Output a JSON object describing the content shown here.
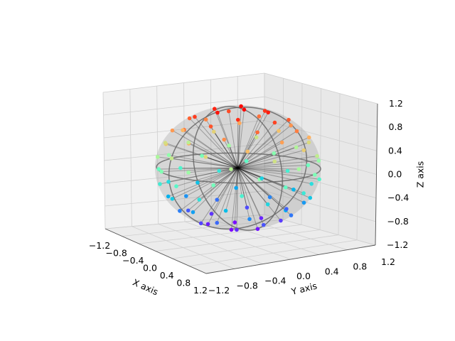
{
  "chart_data": {
    "type": "scatter",
    "subtype": "3d-scatter-unit-sphere",
    "title": "",
    "xlabel": "X axis",
    "ylabel": "Y axis",
    "zlabel": "Z axis",
    "xlim": [
      -1.2,
      1.2
    ],
    "ylim": [
      -1.2,
      1.2
    ],
    "zlim": [
      -1.2,
      1.2
    ],
    "x_ticks": [
      "−1.2",
      "−0.8",
      "−0.4",
      "0.0",
      "0.4",
      "0.8",
      "1.2"
    ],
    "y_ticks": [
      "−1.2",
      "−0.8",
      "−0.4",
      "0.0",
      "0.4",
      "0.8",
      "1.2"
    ],
    "z_ticks": [
      "−1.2",
      "−0.8",
      "−0.4",
      "0.0",
      "0.4",
      "0.8",
      "1.2"
    ],
    "grid": true,
    "colormap": "rainbow by z",
    "sphere_radius": 1.0,
    "rays_from_origin": true,
    "great_circles": [
      "equator",
      "meridian-xz",
      "meridian-yz"
    ],
    "view": {
      "elev": 15,
      "azim": -50
    },
    "points_fibonacci": {
      "count": 100,
      "note": "points evenly spread over unit sphere"
    }
  }
}
